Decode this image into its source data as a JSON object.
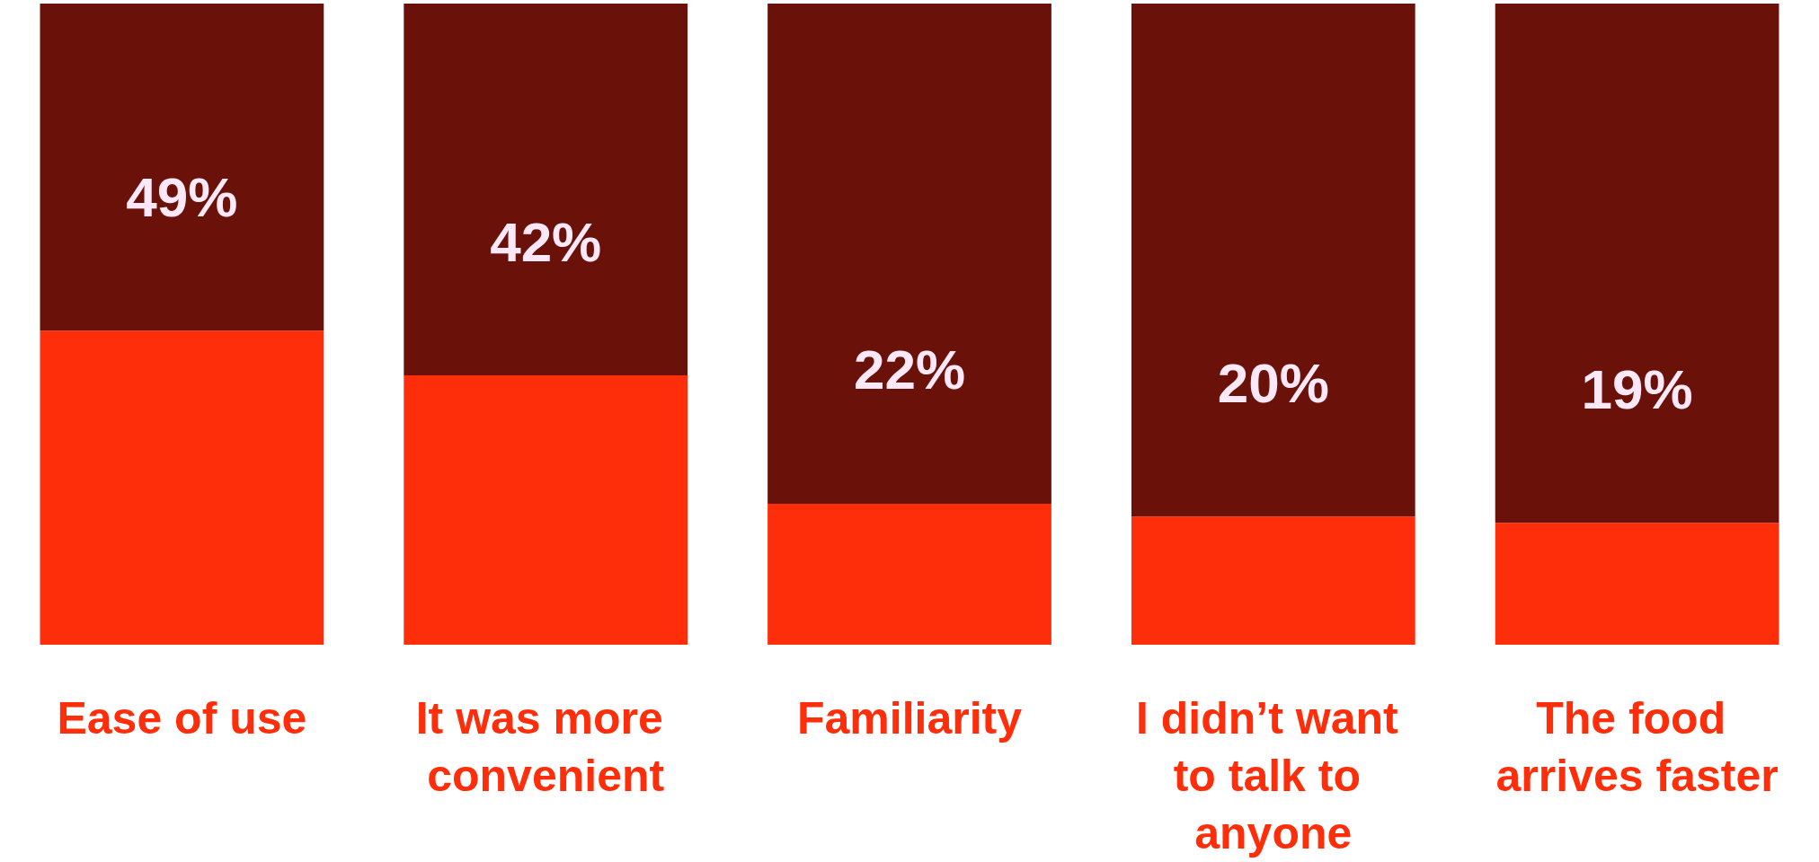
{
  "chart_data": {
    "type": "bar",
    "stacked": true,
    "categories": [
      "Ease of use",
      "It was more convenient",
      "Familiarity",
      "I didn’t want to talk to anyone",
      "The food arrives faster"
    ],
    "series": [
      {
        "color": "#ff2e0a",
        "values": [
          49,
          42,
          22,
          20,
          19
        ],
        "value_labels": [
          "49%",
          "42%",
          "22%",
          "20%",
          "19%"
        ]
      },
      {
        "color": "#6a120a",
        "values": [
          51,
          58,
          78,
          80,
          81
        ]
      }
    ],
    "tick_labels": "x"
  }
}
